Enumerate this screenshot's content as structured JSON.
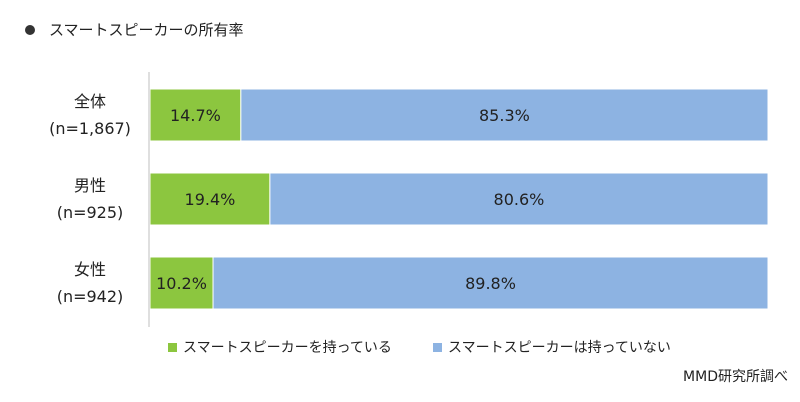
{
  "chart_data": {
    "type": "bar",
    "orientation": "horizontal",
    "stacked": true,
    "title": "スマートスピーカーの所有率",
    "categories": [
      {
        "name": "全体",
        "n": "(n=1,867)"
      },
      {
        "name": "男性",
        "n": "(n=925)"
      },
      {
        "name": "女性",
        "n": "(n=942)"
      }
    ],
    "series": [
      {
        "name": "スマートスピーカーを持っている",
        "color": "#8cc63f",
        "values": [
          14.7,
          19.4,
          10.2
        ]
      },
      {
        "name": "スマートスピーカーは持っていない",
        "color": "#8db3e2",
        "values": [
          85.3,
          80.6,
          89.8
        ]
      }
    ],
    "xlim": [
      0,
      100
    ],
    "grid": false,
    "legend_position": "bottom",
    "value_suffix": "%",
    "source": "MMD研究所調べ"
  }
}
